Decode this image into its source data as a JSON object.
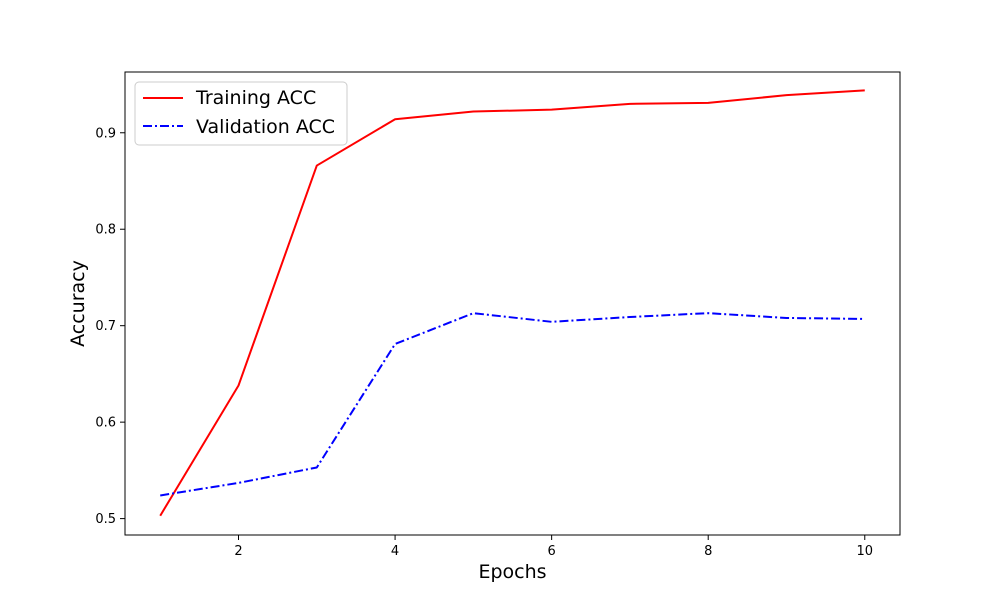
{
  "chart_data": {
    "type": "line",
    "title": "",
    "xlabel": "Epochs",
    "ylabel": "Accuracy",
    "xlim": [
      0.55,
      10.45
    ],
    "ylim": [
      0.483,
      0.963
    ],
    "xticks": [
      2,
      4,
      6,
      8,
      10
    ],
    "yticks": [
      0.5,
      0.6,
      0.7,
      0.8,
      0.9
    ],
    "ytick_labels": [
      "0.5",
      "0.6",
      "0.7",
      "0.8",
      "0.9"
    ],
    "grid": false,
    "legend_position": "top-left",
    "x": [
      1,
      2,
      3,
      4,
      5,
      6,
      7,
      8,
      9,
      10
    ],
    "series": [
      {
        "name": "Training ACC",
        "color": "#ff0000",
        "line_style": "solid",
        "values": [
          0.503,
          0.638,
          0.866,
          0.914,
          0.922,
          0.924,
          0.93,
          0.931,
          0.939,
          0.944
        ]
      },
      {
        "name": "Validation ACC",
        "color": "#0000ff",
        "line_style": "dashdot",
        "values": [
          0.524,
          0.537,
          0.553,
          0.681,
          0.713,
          0.704,
          0.709,
          0.713,
          0.708,
          0.707
        ]
      }
    ]
  }
}
